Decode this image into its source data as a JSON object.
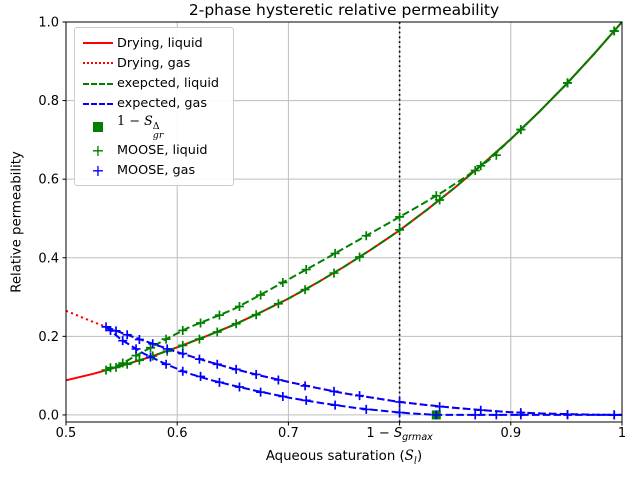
{
  "figure": {
    "title": "2-phase hysteretic relative permeability",
    "ylabel": "Relative permeability",
    "xlabel": {
      "prefix": "Aqueous saturation (",
      "var": "S",
      "sub": "l",
      "suffix": ")"
    }
  },
  "legend": {
    "items": [
      {
        "label": "Drying, liquid",
        "glyph": "line-solid",
        "color": "#ff0000"
      },
      {
        "label": "Drying, gas",
        "glyph": "line-dotted",
        "color": "#ff0000"
      },
      {
        "label": "exepcted, liquid",
        "glyph": "line-dashed",
        "color": "#008000"
      },
      {
        "label": "expected, gas",
        "glyph": "line-dashed",
        "color": "#0000ff"
      },
      {
        "glyph": "square",
        "color": "#008000",
        "math": {
          "prefix": "1 − ",
          "var": "S",
          "sup": "Δ",
          "sub": "gr"
        }
      },
      {
        "label": "MOOSE, liquid",
        "glyph": "plus",
        "color": "#008000",
        "plus_char": "+"
      },
      {
        "label": "MOOSE, gas",
        "glyph": "plus",
        "color": "#0000ff",
        "plus_char": "+"
      }
    ]
  },
  "chart_data": {
    "type": "line",
    "title": "2-phase hysteretic relative permeability",
    "xlabel": "Aqueous saturation (S_l)",
    "ylabel": "Relative permeability",
    "xlim": [
      0.5,
      1.0
    ],
    "ylim": [
      -0.018,
      1.0
    ],
    "grid": true,
    "grid_color": "#bdbdbd",
    "legend_position": "upper left",
    "xticks": [
      {
        "v": 0.5,
        "label": "0.5"
      },
      {
        "v": 0.6,
        "label": "0.6"
      },
      {
        "v": 0.7,
        "label": "0.7"
      },
      {
        "v": 0.8,
        "label": "",
        "math": true
      },
      {
        "v": 0.9,
        "label": "0.9"
      },
      {
        "v": 1.0,
        "label": "1"
      }
    ],
    "yticks": [
      {
        "v": 0.0,
        "label": "0.0"
      },
      {
        "v": 0.2,
        "label": "0.2"
      },
      {
        "v": 0.4,
        "label": "0.4"
      },
      {
        "v": 0.6,
        "label": "0.6"
      },
      {
        "v": 0.8,
        "label": "0.8"
      },
      {
        "v": 1.0,
        "label": "1.0"
      }
    ],
    "vline": {
      "x": 0.8,
      "color": "#000000",
      "style": "dotted",
      "label": {
        "prefix": "1 − ",
        "var": "S",
        "sub": "grmax"
      }
    },
    "series": [
      {
        "id": "drying-liquid",
        "label": "Drying, liquid",
        "color": "#ff0000",
        "dash": "solid",
        "points": [
          [
            0.5,
            0.088
          ],
          [
            0.525,
            0.105
          ],
          [
            0.55,
            0.125
          ],
          [
            0.575,
            0.147
          ],
          [
            0.6,
            0.172
          ],
          [
            0.625,
            0.199
          ],
          [
            0.65,
            0.228
          ],
          [
            0.675,
            0.261
          ],
          [
            0.7,
            0.296
          ],
          [
            0.725,
            0.335
          ],
          [
            0.75,
            0.377
          ],
          [
            0.775,
            0.422
          ],
          [
            0.8,
            0.47
          ],
          [
            0.825,
            0.523
          ],
          [
            0.85,
            0.579
          ],
          [
            0.875,
            0.639
          ],
          [
            0.9,
            0.702
          ],
          [
            0.925,
            0.77
          ],
          [
            0.95,
            0.842
          ],
          [
            0.975,
            0.919
          ],
          [
            1,
            1
          ]
        ]
      },
      {
        "id": "drying-gas",
        "label": "Drying, gas",
        "color": "#ff0000",
        "dash": "dotted",
        "points": [
          [
            0.5,
            0.265
          ],
          [
            0.525,
            0.236
          ],
          [
            0.55,
            0.209
          ],
          [
            0.575,
            0.184
          ],
          [
            0.6,
            0.16
          ],
          [
            0.625,
            0.138
          ],
          [
            0.65,
            0.118
          ],
          [
            0.675,
            0.1
          ],
          [
            0.7,
            0.084
          ],
          [
            0.725,
            0.069
          ],
          [
            0.75,
            0.055
          ],
          [
            0.775,
            0.044
          ],
          [
            0.8,
            0.033
          ],
          [
            0.825,
            0.025
          ],
          [
            0.85,
            0.018
          ],
          [
            0.875,
            0.012
          ],
          [
            0.9,
            0.007
          ],
          [
            0.925,
            0.004
          ],
          [
            0.95,
            0.002
          ],
          [
            0.975,
            0.0005
          ],
          [
            1,
            0
          ]
        ]
      },
      {
        "id": "expected-liquid-drying-branch",
        "label": null,
        "color": "#008000",
        "dash": "dashed",
        "points": [
          [
            0.536,
            0.114
          ],
          [
            0.55,
            0.125
          ],
          [
            0.575,
            0.147
          ],
          [
            0.6,
            0.172
          ],
          [
            0.625,
            0.199
          ],
          [
            0.65,
            0.228
          ],
          [
            0.675,
            0.261
          ],
          [
            0.7,
            0.296
          ],
          [
            0.725,
            0.335
          ],
          [
            0.75,
            0.377
          ],
          [
            0.775,
            0.422
          ],
          [
            0.8,
            0.47
          ],
          [
            0.825,
            0.523
          ],
          [
            0.85,
            0.579
          ],
          [
            0.875,
            0.639
          ],
          [
            0.9,
            0.702
          ],
          [
            0.925,
            0.77
          ],
          [
            0.95,
            0.842
          ],
          [
            0.975,
            0.919
          ],
          [
            1,
            1
          ]
        ]
      },
      {
        "id": "expected-liquid-wetting-branch",
        "label": "exepcted, liquid",
        "color": "#008000",
        "dash": "dashed",
        "points": [
          [
            0.536,
            0.114
          ],
          [
            0.55,
            0.13
          ],
          [
            0.57,
            0.162
          ],
          [
            0.59,
            0.193
          ],
          [
            0.61,
            0.222
          ],
          [
            0.63,
            0.245
          ],
          [
            0.65,
            0.268
          ],
          [
            0.67,
            0.298
          ],
          [
            0.7,
            0.345
          ],
          [
            0.73,
            0.392
          ],
          [
            0.76,
            0.44
          ],
          [
            0.79,
            0.488
          ],
          [
            0.8,
            0.504
          ],
          [
            0.82,
            0.536
          ],
          [
            0.84,
            0.57
          ],
          [
            0.86,
            0.607
          ],
          [
            0.88,
            0.648
          ],
          [
            0.9,
            0.702
          ],
          [
            0.925,
            0.77
          ],
          [
            0.95,
            0.842
          ],
          [
            0.975,
            0.919
          ],
          [
            1,
            1
          ]
        ]
      },
      {
        "id": "expected-gas-drying-branch",
        "label": null,
        "color": "#0000ff",
        "dash": "dashed",
        "points": [
          [
            0.536,
            0.224
          ],
          [
            0.55,
            0.209
          ],
          [
            0.575,
            0.184
          ],
          [
            0.6,
            0.16
          ],
          [
            0.625,
            0.138
          ],
          [
            0.65,
            0.118
          ],
          [
            0.675,
            0.1
          ],
          [
            0.7,
            0.084
          ],
          [
            0.725,
            0.069
          ],
          [
            0.75,
            0.055
          ],
          [
            0.775,
            0.044
          ],
          [
            0.8,
            0.033
          ],
          [
            0.825,
            0.025
          ],
          [
            0.85,
            0.018
          ],
          [
            0.875,
            0.012
          ],
          [
            0.9,
            0.007
          ],
          [
            0.925,
            0.004
          ],
          [
            0.95,
            0.002
          ],
          [
            0.975,
            0.0005
          ],
          [
            1,
            0
          ]
        ]
      },
      {
        "id": "expected-gas-wetting-branch",
        "label": "expected, gas",
        "color": "#0000ff",
        "dash": "dashed",
        "points": [
          [
            0.536,
            0.224
          ],
          [
            0.55,
            0.191
          ],
          [
            0.57,
            0.156
          ],
          [
            0.59,
            0.129
          ],
          [
            0.61,
            0.106
          ],
          [
            0.63,
            0.089
          ],
          [
            0.65,
            0.075
          ],
          [
            0.67,
            0.062
          ],
          [
            0.7,
            0.044
          ],
          [
            0.73,
            0.03
          ],
          [
            0.76,
            0.018
          ],
          [
            0.79,
            0.009
          ],
          [
            0.81,
            0.004
          ],
          [
            0.833,
            0
          ],
          [
            0.9,
            0
          ],
          [
            1,
            0
          ]
        ]
      }
    ],
    "scatter": [
      {
        "id": "one-minus-sgr-delta",
        "label": "1 − S_gr^Δ",
        "marker": "square",
        "color": "#008000",
        "points": [
          [
            0.833,
            0.0
          ]
        ]
      },
      {
        "id": "moose-liquid",
        "label": "MOOSE, liquid",
        "marker": "plus",
        "color": "#008000",
        "points": [
          [
            0.536,
            0.114
          ],
          [
            0.545,
            0.121
          ],
          [
            0.555,
            0.129
          ],
          [
            0.566,
            0.139
          ],
          [
            0.578,
            0.15
          ],
          [
            0.591,
            0.162
          ],
          [
            0.605,
            0.177
          ],
          [
            0.62,
            0.193
          ],
          [
            0.636,
            0.211
          ],
          [
            0.653,
            0.232
          ],
          [
            0.671,
            0.255
          ],
          [
            0.691,
            0.283
          ],
          [
            0.715,
            0.319
          ],
          [
            0.741,
            0.361
          ],
          [
            0.764,
            0.402
          ],
          [
            0.8,
            0.471
          ],
          [
            0.836,
            0.547
          ],
          [
            0.873,
            0.634
          ],
          [
            0.909,
            0.726
          ],
          [
            0.951,
            0.845
          ],
          [
            0.993,
            0.977
          ],
          [
            0.54,
            0.12
          ],
          [
            0.551,
            0.132
          ],
          [
            0.563,
            0.151
          ],
          [
            0.576,
            0.171
          ],
          [
            0.59,
            0.193
          ],
          [
            0.605,
            0.215
          ],
          [
            0.621,
            0.234
          ],
          [
            0.638,
            0.254
          ],
          [
            0.656,
            0.276
          ],
          [
            0.675,
            0.305
          ],
          [
            0.695,
            0.337
          ],
          [
            0.716,
            0.37
          ],
          [
            0.742,
            0.411
          ],
          [
            0.77,
            0.456
          ],
          [
            0.8,
            0.504
          ],
          [
            0.833,
            0.558
          ],
          [
            0.868,
            0.622
          ],
          [
            0.887,
            0.661
          ],
          [
            0.909,
            0.726
          ],
          [
            0.951,
            0.845
          ],
          [
            0.993,
            0.977
          ]
        ]
      },
      {
        "id": "moose-gas",
        "label": "MOOSE, gas",
        "marker": "plus",
        "color": "#0000ff",
        "points": [
          [
            0.536,
            0.224
          ],
          [
            0.545,
            0.214
          ],
          [
            0.555,
            0.204
          ],
          [
            0.566,
            0.192
          ],
          [
            0.578,
            0.181
          ],
          [
            0.591,
            0.168
          ],
          [
            0.605,
            0.156
          ],
          [
            0.62,
            0.142
          ],
          [
            0.636,
            0.129
          ],
          [
            0.653,
            0.116
          ],
          [
            0.671,
            0.103
          ],
          [
            0.691,
            0.089
          ],
          [
            0.715,
            0.074
          ],
          [
            0.741,
            0.06
          ],
          [
            0.764,
            0.049
          ],
          [
            0.8,
            0.033
          ],
          [
            0.836,
            0.021
          ],
          [
            0.873,
            0.012
          ],
          [
            0.909,
            0.006
          ],
          [
            0.951,
            0.001
          ],
          [
            0.993,
            0.0
          ],
          [
            0.54,
            0.215
          ],
          [
            0.551,
            0.189
          ],
          [
            0.563,
            0.168
          ],
          [
            0.576,
            0.147
          ],
          [
            0.59,
            0.129
          ],
          [
            0.605,
            0.111
          ],
          [
            0.621,
            0.098
          ],
          [
            0.638,
            0.083
          ],
          [
            0.656,
            0.071
          ],
          [
            0.675,
            0.058
          ],
          [
            0.695,
            0.047
          ],
          [
            0.716,
            0.037
          ],
          [
            0.742,
            0.025
          ],
          [
            0.77,
            0.014
          ],
          [
            0.8,
            0.006
          ],
          [
            0.833,
            0.0
          ],
          [
            0.868,
            0.0
          ],
          [
            0.887,
            0.0
          ],
          [
            0.909,
            0.0
          ],
          [
            0.951,
            0.0
          ],
          [
            0.993,
            0.0
          ]
        ]
      }
    ]
  }
}
